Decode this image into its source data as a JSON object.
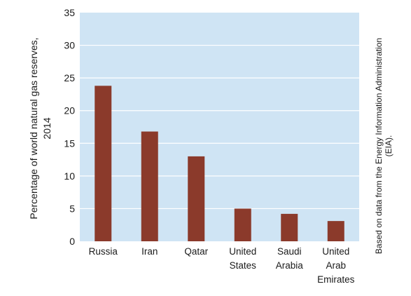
{
  "chart_data": {
    "type": "bar",
    "categories": [
      [
        "Russia"
      ],
      [
        "Iran"
      ],
      [
        "Qatar"
      ],
      [
        "United",
        "States"
      ],
      [
        "Saudi",
        "Arabia"
      ],
      [
        "United",
        "Arab",
        "Emirates"
      ]
    ],
    "values": [
      23.8,
      16.8,
      13.0,
      5.0,
      4.2,
      3.1
    ],
    "ylabel": [
      "Percentage of world natural gas reserves,",
      "2014"
    ],
    "xlabel": "",
    "ylim": [
      0,
      35
    ],
    "yticks": [
      0,
      5,
      10,
      15,
      20,
      25,
      30,
      35
    ],
    "grid": true,
    "source_note": [
      "Based on data from the Energy Information Administration",
      "(EIA)."
    ],
    "colors": {
      "plot_background": "#cfe4f4",
      "bar": "#8b3a2b",
      "gridline": "#ffffff"
    }
  }
}
